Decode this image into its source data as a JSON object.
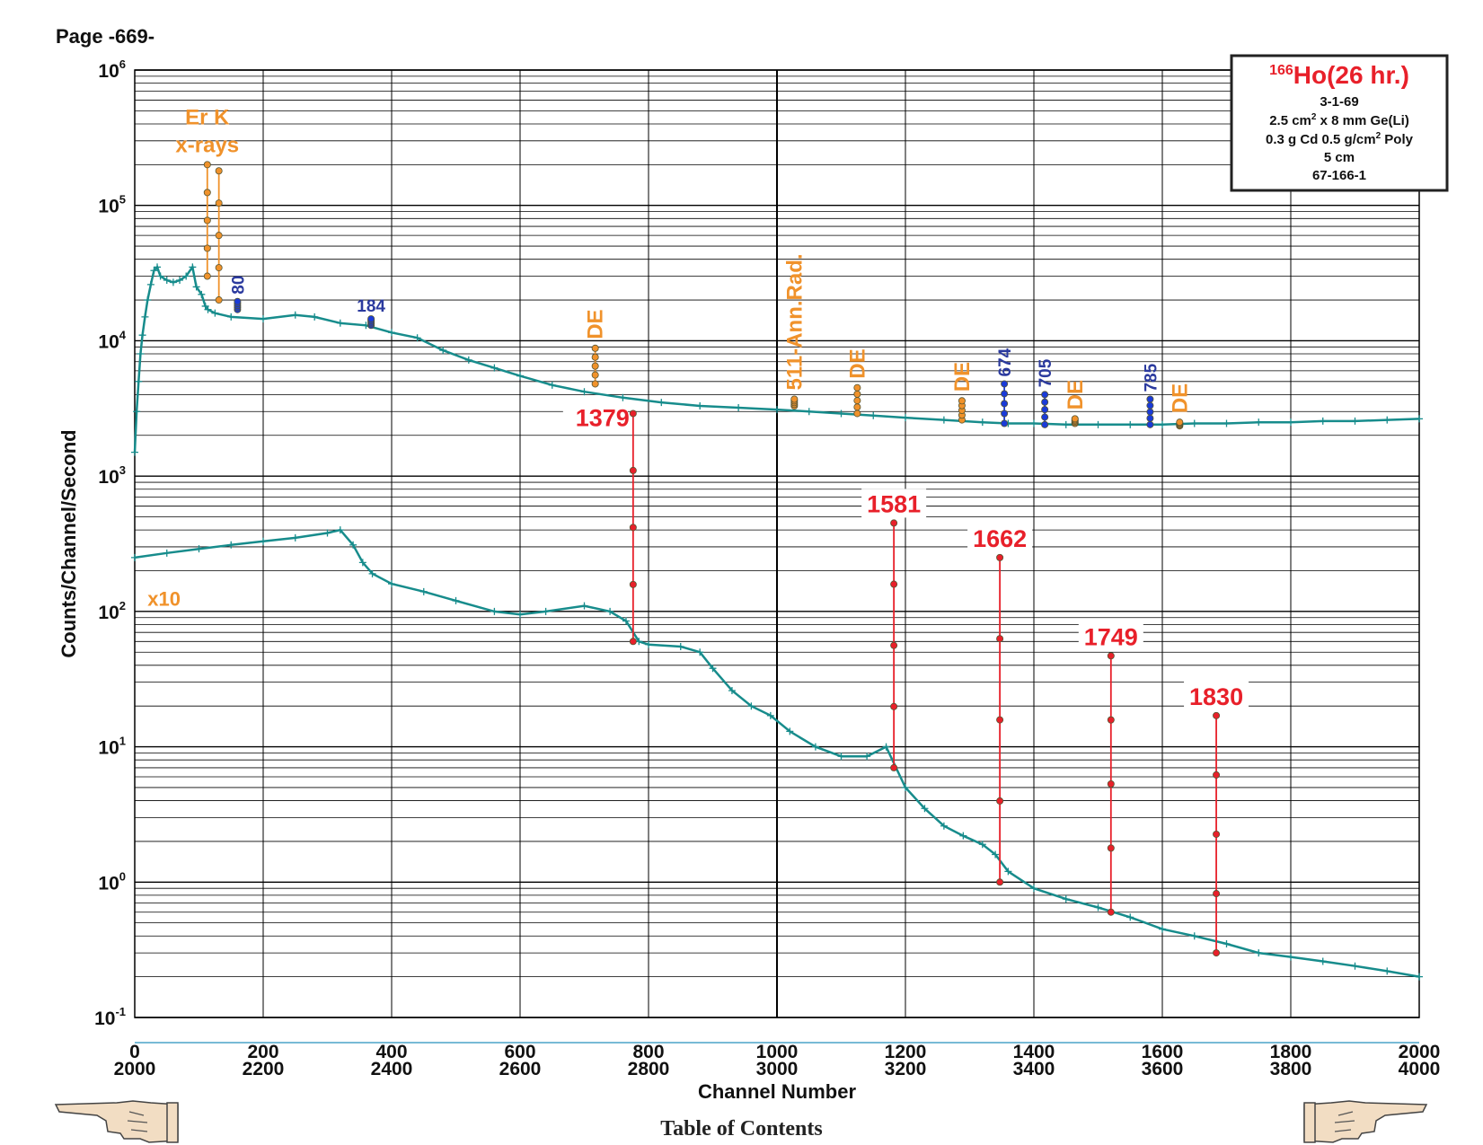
{
  "page": {
    "label": "Page -669-",
    "footer_link": "Table of Contents",
    "nav": {
      "prev": "pointing-hand-left-icon",
      "next": "pointing-hand-right-icon"
    }
  },
  "chart_data": {
    "type": "scatter",
    "xlabel": "Channel Number",
    "ylabel": "Counts/Channel/Second",
    "y_scale": "log",
    "ylim": [
      0.1,
      1000000
    ],
    "xlim": [
      0,
      2000
    ],
    "grid": true,
    "x_ticks_lower": [
      "0",
      "200",
      "400",
      "600",
      "800",
      "1000",
      "1200",
      "1400",
      "1600",
      "1800",
      "2000"
    ],
    "x_ticks_upper": [
      "2000",
      "2200",
      "2400",
      "2600",
      "2800",
      "3000",
      "3200",
      "3400",
      "3600",
      "3800",
      "4000"
    ],
    "y_ticks": [
      {
        "base": "10",
        "exp": "-1"
      },
      {
        "base": "10",
        "exp": "0"
      },
      {
        "base": "10",
        "exp": "1"
      },
      {
        "base": "10",
        "exp": "2"
      },
      {
        "base": "10",
        "exp": "3"
      },
      {
        "base": "10",
        "exp": "4"
      },
      {
        "base": "10",
        "exp": "5"
      },
      {
        "base": "10",
        "exp": "6"
      }
    ],
    "info_box": {
      "isotope_mass": "166",
      "isotope_title": "Ho(26 hr.)",
      "line1": "3-1-69",
      "line2_a": "2.5 cm",
      "line2_sup": "2",
      "line2_b": " x 8 mm Ge(Li)",
      "line3_a": "0.3 g Cd 0.5 g/cm",
      "line3_sup": "2",
      "line3_b": " Poly",
      "line4": "5 cm",
      "line5": "67-166-1"
    },
    "series_upper": {
      "points": [
        [
          0,
          1500
        ],
        [
          3,
          3000
        ],
        [
          6,
          5000
        ],
        [
          9,
          8000
        ],
        [
          12,
          11000
        ],
        [
          16,
          15000
        ],
        [
          20,
          20000
        ],
        [
          25,
          26000
        ],
        [
          30,
          33000
        ],
        [
          35,
          35000
        ],
        [
          40,
          30000
        ],
        [
          50,
          28000
        ],
        [
          60,
          27000
        ],
        [
          70,
          28000
        ],
        [
          80,
          30000
        ],
        [
          90,
          35000
        ],
        [
          96,
          25000
        ],
        [
          104,
          22000
        ],
        [
          110,
          18000
        ],
        [
          114,
          17000
        ],
        [
          125,
          16000
        ],
        [
          150,
          15000
        ],
        [
          200,
          14500
        ],
        [
          250,
          15500
        ],
        [
          280,
          15000
        ],
        [
          320,
          13500
        ],
        [
          360,
          13000
        ],
        [
          400,
          11500
        ],
        [
          440,
          10500
        ],
        [
          480,
          8500
        ],
        [
          520,
          7200
        ],
        [
          560,
          6300
        ],
        [
          600,
          5500
        ],
        [
          650,
          4700
        ],
        [
          700,
          4200
        ],
        [
          760,
          3800
        ],
        [
          820,
          3500
        ],
        [
          880,
          3300
        ],
        [
          940,
          3200
        ],
        [
          1000,
          3100
        ],
        [
          1050,
          3000
        ],
        [
          1100,
          2900
        ],
        [
          1150,
          2800
        ],
        [
          1200,
          2700
        ],
        [
          1260,
          2600
        ],
        [
          1320,
          2500
        ],
        [
          1360,
          2450
        ],
        [
          1400,
          2450
        ],
        [
          1450,
          2400
        ],
        [
          1500,
          2400
        ],
        [
          1550,
          2400
        ],
        [
          1600,
          2400
        ],
        [
          1650,
          2450
        ],
        [
          1700,
          2450
        ],
        [
          1750,
          2500
        ],
        [
          1800,
          2500
        ],
        [
          1850,
          2550
        ],
        [
          1900,
          2550
        ],
        [
          1950,
          2600
        ],
        [
          2000,
          2650
        ]
      ]
    },
    "series_lower": {
      "label": "x10",
      "points": [
        [
          0,
          250
        ],
        [
          50,
          270
        ],
        [
          100,
          290
        ],
        [
          150,
          310
        ],
        [
          200,
          330
        ],
        [
          250,
          350
        ],
        [
          300,
          380
        ],
        [
          320,
          400
        ],
        [
          340,
          310
        ],
        [
          355,
          230
        ],
        [
          370,
          190
        ],
        [
          400,
          160
        ],
        [
          450,
          140
        ],
        [
          500,
          120
        ],
        [
          560,
          100
        ],
        [
          600,
          95
        ],
        [
          640,
          100
        ],
        [
          700,
          110
        ],
        [
          740,
          100
        ],
        [
          765,
          85
        ],
        [
          785,
          60
        ],
        [
          800,
          57
        ],
        [
          850,
          55
        ],
        [
          880,
          50
        ],
        [
          900,
          38
        ],
        [
          930,
          26
        ],
        [
          960,
          20
        ],
        [
          990,
          17
        ],
        [
          1020,
          13
        ],
        [
          1060,
          10
        ],
        [
          1100,
          8.5
        ],
        [
          1140,
          8.5
        ],
        [
          1170,
          10
        ],
        [
          1200,
          5
        ],
        [
          1230,
          3.5
        ],
        [
          1260,
          2.6
        ],
        [
          1290,
          2.2
        ],
        [
          1320,
          1.9
        ],
        [
          1340,
          1.6
        ],
        [
          1360,
          1.2
        ],
        [
          1400,
          0.9
        ],
        [
          1450,
          0.75
        ],
        [
          1500,
          0.65
        ],
        [
          1550,
          0.55
        ],
        [
          1600,
          0.45
        ],
        [
          1650,
          0.4
        ],
        [
          1700,
          0.35
        ],
        [
          1750,
          0.3
        ],
        [
          1800,
          0.28
        ],
        [
          1850,
          0.26
        ],
        [
          1900,
          0.24
        ],
        [
          1950,
          0.22
        ],
        [
          2000,
          0.2
        ]
      ]
    },
    "peaks_orange": [
      {
        "label": "Er K",
        "label2": "x-rays",
        "x": 113,
        "ymin": 30000,
        "ymax": 200000
      },
      {
        "label": "",
        "x": 131,
        "ymin": 20000,
        "ymax": 180000
      },
      {
        "label": "DE",
        "x": 717,
        "ymin": 4800,
        "ymax": 8800
      },
      {
        "label": "511-Ann.Rad.",
        "x": 1027,
        "ymin": 3300,
        "ymax": 3700
      },
      {
        "label": "DE",
        "x": 1125,
        "ymin": 2900,
        "ymax": 4500
      },
      {
        "label": "DE",
        "x": 1288,
        "ymin": 2600,
        "ymax": 3600
      },
      {
        "label": "DE",
        "x": 1464,
        "ymin": 2450,
        "ymax": 2650
      },
      {
        "label": "DE",
        "x": 1627,
        "ymin": 2350,
        "ymax": 2500
      }
    ],
    "peaks_blue": [
      {
        "label": "80",
        "x": 160,
        "ymin": 17000,
        "ymax": 19500
      },
      {
        "label": "184",
        "x": 368,
        "ymin": 13000,
        "ymax": 14500
      },
      {
        "label": "674",
        "x": 1354,
        "ymin": 2450,
        "ymax": 4800
      },
      {
        "label": "705",
        "x": 1417,
        "ymin": 2400,
        "ymax": 4000
      },
      {
        "label": "785",
        "x": 1581,
        "ymin": 2400,
        "ymax": 3700
      }
    ],
    "peaks_red": [
      {
        "label": "1379",
        "x": 776,
        "ymin": 60,
        "ymax": 2900
      },
      {
        "label": "1581",
        "x": 1182,
        "ymin": 7,
        "ymax": 450
      },
      {
        "label": "1662",
        "x": 1347,
        "ymin": 1.0,
        "ymax": 250
      },
      {
        "label": "1749",
        "x": 1520,
        "ymin": 0.6,
        "ymax": 47
      },
      {
        "label": "1830",
        "x": 1684,
        "ymin": 0.3,
        "ymax": 17
      }
    ]
  }
}
